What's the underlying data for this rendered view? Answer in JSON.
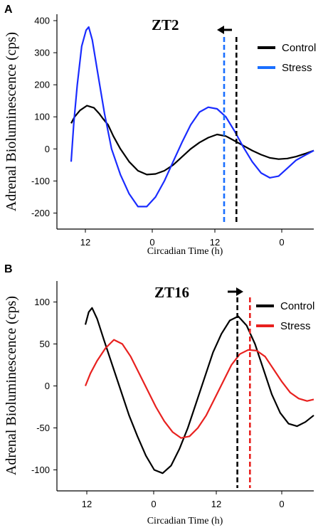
{
  "chart_data": [
    {
      "panel": "A",
      "type": "line",
      "title": "ZT2",
      "xlabel": "Circadian Time (h)",
      "ylabel": "Adrenal Bioluminescence (cps)",
      "x_ticks": [
        "12",
        "0",
        "12",
        "0"
      ],
      "ylim": [
        -250,
        420
      ],
      "y_ticks": [
        400,
        300,
        200,
        100,
        0,
        -100,
        -200
      ],
      "legend": "top-right",
      "series": [
        {
          "name": "Control",
          "color": "#000000",
          "x": [
            0.0,
            0.2,
            0.5,
            0.9,
            1.3,
            1.6,
            1.8,
            2.1,
            2.4,
            2.8,
            3.3,
            3.8,
            4.3,
            4.8,
            5.3,
            5.8,
            6.3,
            6.8,
            7.3,
            7.8,
            8.3,
            8.8,
            9.3,
            9.8,
            10.3,
            10.8,
            11.3,
            11.8,
            12.3,
            12.8,
            13.3,
            13.8
          ],
          "values": [
            80,
            100,
            120,
            135,
            128,
            110,
            95,
            75,
            40,
            0,
            -40,
            -68,
            -80,
            -78,
            -68,
            -50,
            -25,
            0,
            20,
            35,
            45,
            40,
            25,
            10,
            -5,
            -18,
            -28,
            -32,
            -30,
            -24,
            -15,
            -5
          ]
        },
        {
          "name": "Stress",
          "color": "#1a2cff",
          "x": [
            0.0,
            0.15,
            0.35,
            0.6,
            0.85,
            1.0,
            1.2,
            1.5,
            1.9,
            2.3,
            2.8,
            3.3,
            3.8,
            4.3,
            4.8,
            5.3,
            5.8,
            6.3,
            6.8,
            7.3,
            7.8,
            8.3,
            8.8,
            9.3,
            9.8,
            10.3,
            10.8,
            11.3,
            11.8,
            12.3,
            12.8,
            13.3,
            13.8
          ],
          "values": [
            -40,
            80,
            200,
            320,
            370,
            380,
            340,
            240,
            110,
            0,
            -80,
            -140,
            -180,
            -180,
            -150,
            -100,
            -40,
            20,
            75,
            115,
            130,
            125,
            100,
            55,
            5,
            -40,
            -75,
            -90,
            -85,
            -60,
            -35,
            -20,
            -5
          ]
        }
      ],
      "markers": [
        {
          "series": "Stress",
          "x": 8.7
        },
        {
          "series": "Control",
          "x": 9.4
        }
      ],
      "arrow": "left"
    },
    {
      "panel": "B",
      "type": "line",
      "title": "ZT16",
      "xlabel": "Circadian Time (h)",
      "ylabel": "Adrenal Bioluminescence (cps)",
      "x_ticks": [
        "12",
        "0",
        "12",
        "0"
      ],
      "ylim": [
        -125,
        125
      ],
      "y_ticks": [
        100,
        50,
        0,
        -50,
        -100
      ],
      "legend": "top-right",
      "series": [
        {
          "name": "Control",
          "color": "#000000",
          "x": [
            0.0,
            0.2,
            0.4,
            0.7,
            1.1,
            1.6,
            2.1,
            2.6,
            3.1,
            3.6,
            4.1,
            4.6,
            5.1,
            5.6,
            6.1,
            6.6,
            7.1,
            7.6,
            8.1,
            8.6,
            9.1,
            9.6,
            10.1,
            10.6,
            11.1,
            11.6,
            12.1,
            12.6,
            13.1,
            13.6
          ],
          "values": [
            73,
            88,
            93,
            80,
            55,
            25,
            -5,
            -35,
            -60,
            -83,
            -100,
            -104,
            -95,
            -75,
            -50,
            -20,
            10,
            40,
            62,
            78,
            83,
            72,
            50,
            20,
            -10,
            -32,
            -45,
            -48,
            -43,
            -35
          ]
        },
        {
          "name": "Stress",
          "color": "#e8211f",
          "x": [
            0.0,
            0.3,
            0.7,
            1.2,
            1.7,
            2.2,
            2.7,
            3.2,
            3.7,
            4.2,
            4.7,
            5.2,
            5.7,
            6.2,
            6.7,
            7.2,
            7.7,
            8.2,
            8.7,
            9.2,
            9.7,
            10.2,
            10.7,
            11.2,
            11.7,
            12.2,
            12.7,
            13.2,
            13.6
          ],
          "values": [
            0,
            15,
            30,
            45,
            55,
            50,
            35,
            15,
            -5,
            -25,
            -42,
            -55,
            -62,
            -60,
            -50,
            -35,
            -15,
            5,
            25,
            38,
            43,
            42,
            35,
            20,
            5,
            -8,
            -15,
            -18,
            -16
          ]
        }
      ],
      "markers": [
        {
          "series": "Control",
          "x": 9.05
        },
        {
          "series": "Stress",
          "x": 9.8
        }
      ],
      "arrow": "right"
    }
  ]
}
